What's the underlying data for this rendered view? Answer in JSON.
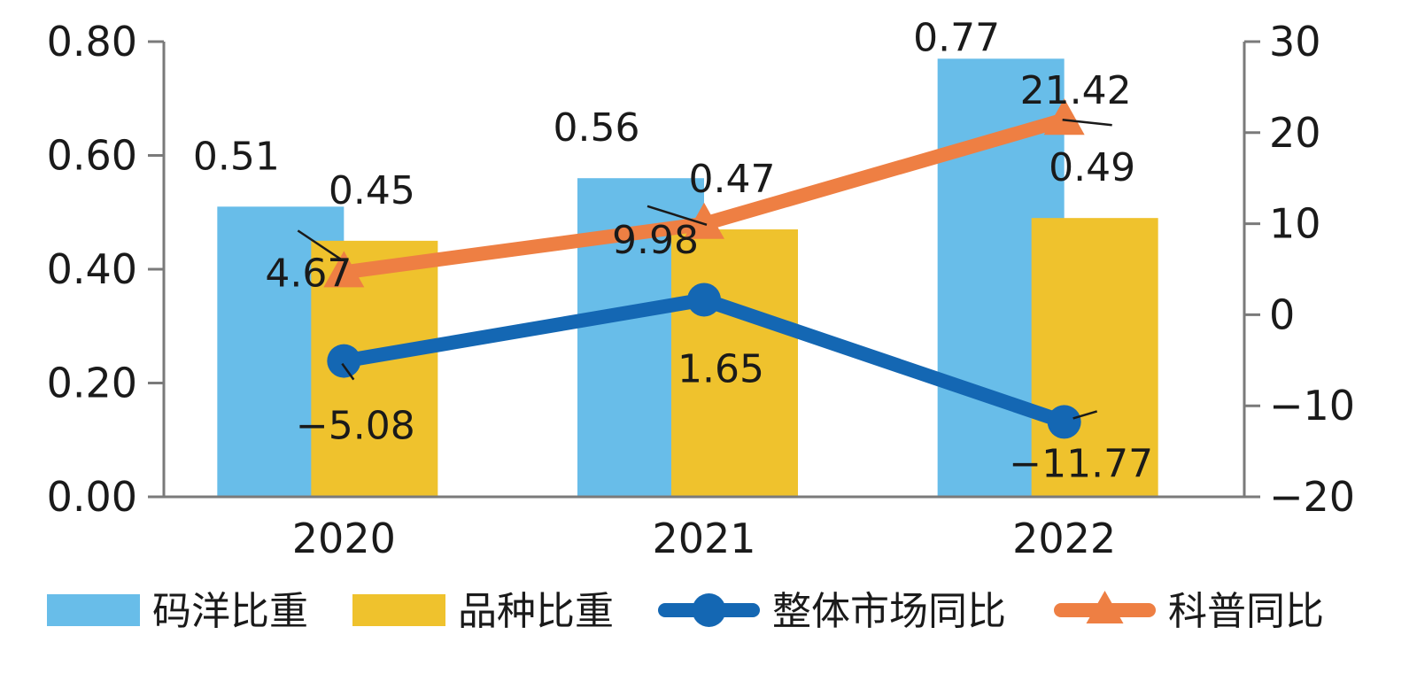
{
  "chart_data": {
    "type": "bar",
    "categories": [
      "2020",
      "2021",
      "2022"
    ],
    "series": [
      {
        "name": "码洋比重",
        "kind": "bar",
        "axis": "left",
        "color": "#68BDE9",
        "values": [
          0.51,
          0.56,
          0.77
        ],
        "labels": [
          "0.51",
          "0.56",
          "0.77"
        ]
      },
      {
        "name": "品种比重",
        "kind": "bar",
        "axis": "left",
        "color": "#EFC22D",
        "values": [
          0.45,
          0.47,
          0.49
        ],
        "labels": [
          "0.45",
          "0.47",
          "0.49"
        ]
      },
      {
        "name": "整体市场同比",
        "kind": "line",
        "marker": "circle",
        "axis": "right",
        "color": "#1467B3",
        "values": [
          -5.08,
          1.65,
          -11.77
        ],
        "labels": [
          "−5.08",
          "1.65",
          "−11.77"
        ]
      },
      {
        "name": "科普同比",
        "kind": "line",
        "marker": "triangle",
        "axis": "right",
        "color": "#EE7F43",
        "values": [
          4.67,
          9.98,
          21.42
        ],
        "labels": [
          "4.67",
          "9.98",
          "21.42"
        ]
      }
    ],
    "y_left": {
      "ylim": [
        0,
        0.8
      ],
      "ticks": [
        "0.00",
        "0.20",
        "0.40",
        "0.60",
        "0.80"
      ]
    },
    "y_right": {
      "ylim": [
        -20,
        30
      ],
      "ticks": [
        "−20",
        "−10",
        "0",
        "10",
        "20",
        "30"
      ]
    },
    "legend_position": "bottom",
    "grid": false
  }
}
